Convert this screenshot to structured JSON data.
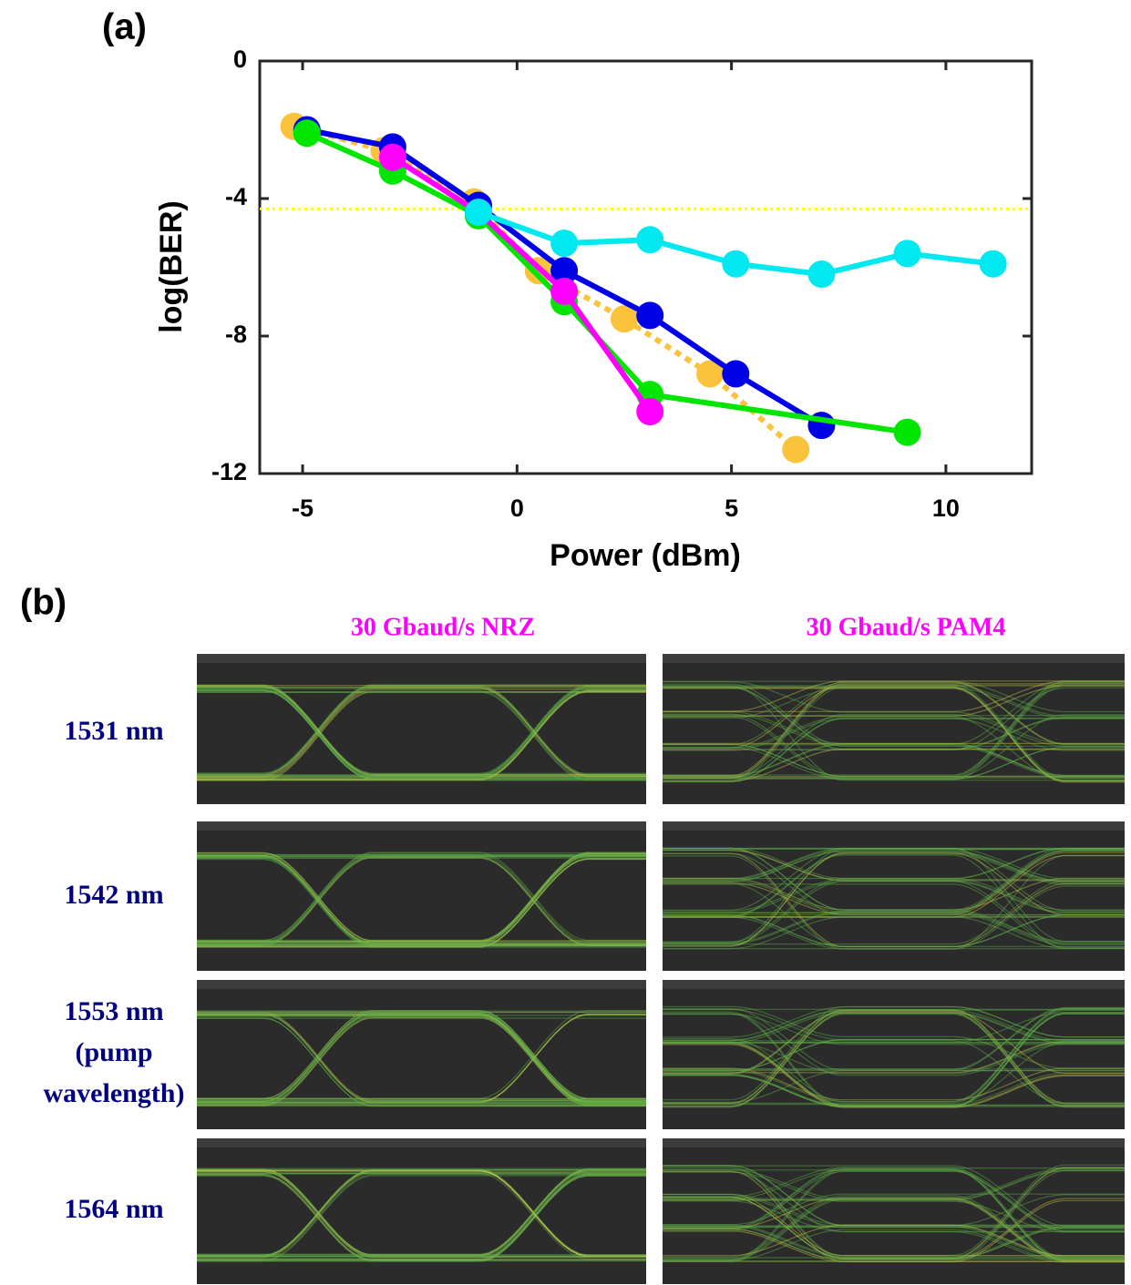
{
  "chart_data": {
    "type": "line",
    "panel_label": "(a)",
    "x_label": "Power (dBm)",
    "y_label": "log(BER)",
    "xlim": [
      -6,
      12
    ],
    "ylim": [
      -12,
      0
    ],
    "xticks": [
      -5,
      0,
      5,
      10
    ],
    "yticks": [
      0,
      -4,
      -8,
      -12
    ],
    "threshold": {
      "value": -4.3,
      "color": "#ffff00"
    },
    "series": [
      {
        "color": "#fbc33c",
        "dash": true,
        "x": [
          -5.2,
          -3.1,
          -1,
          0.5,
          2.5,
          4.5,
          6.5
        ],
        "values": [
          -1.9,
          -2.6,
          -4.1,
          -6.1,
          -7.5,
          -9.1,
          -11.3
        ]
      },
      {
        "color": "#0000e6",
        "x": [
          -4.9,
          -2.9,
          -0.9,
          1.1,
          3.1,
          5.1,
          7.1
        ],
        "values": [
          -2.0,
          -2.5,
          -4.2,
          -6.1,
          -7.4,
          -9.1,
          -10.6
        ]
      },
      {
        "color": "#00e600",
        "x": [
          -4.9,
          -2.9,
          -0.9,
          1.1,
          3.1,
          9.1
        ],
        "values": [
          -2.1,
          -3.2,
          -4.5,
          -7.0,
          -9.7,
          -10.8
        ]
      },
      {
        "color": "#ff00ff",
        "x": [
          -2.9,
          -0.9,
          1.1,
          3.1
        ],
        "values": [
          -2.8,
          -4.4,
          -6.7,
          -10.2
        ]
      },
      {
        "color": "#00e8f0",
        "x": [
          -0.9,
          1.1,
          3.1,
          5.1,
          7.1,
          9.1,
          11.1
        ],
        "values": [
          -4.4,
          -5.3,
          -5.2,
          -5.9,
          -6.2,
          -5.6,
          -5.9
        ]
      }
    ]
  },
  "eye_diagrams": {
    "panel_label": "(b)",
    "columns": [
      "30 Gbaud/s NRZ",
      "30 Gbaud/s PAM4"
    ],
    "rows": [
      [
        "1531 nm"
      ],
      [
        "1542 nm"
      ],
      [
        "1553 nm",
        "(pump",
        "wavelength)"
      ],
      [
        "1564 nm"
      ]
    ]
  }
}
